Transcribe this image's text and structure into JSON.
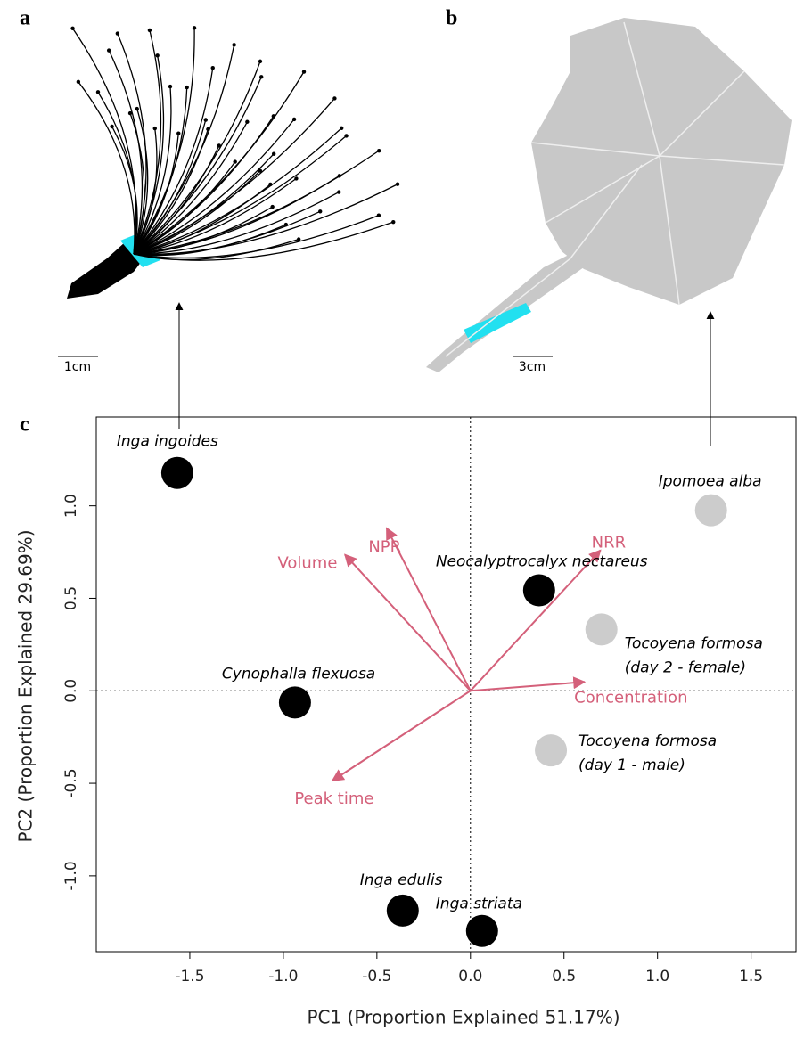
{
  "panel_labels": [
    "a",
    "b",
    "c"
  ],
  "scale_bars": [
    "1cm",
    "3cm"
  ],
  "chart_data": {
    "type": "scatter",
    "x_label": "PC1 (Proportion Explained 51.17%)",
    "y_label": "PC2 (Proportion Explained 29.69%)",
    "xlim": [
      -2.0,
      1.74
    ],
    "ylim": [
      -1.41,
      1.48
    ],
    "xticks": [
      -1.5,
      {
        "value": -1.0,
        "label": "-1.0"
      },
      -0.5,
      {
        "value": 0.0,
        "label": "0.0"
      },
      0.5,
      {
        "value": 1.0,
        "label": "1.0"
      },
      1.5
    ],
    "yticks": [
      {
        "value": -1.0,
        "label": "-1.0"
      },
      -0.5,
      {
        "value": 0.0,
        "label": "0.0"
      },
      0.5,
      {
        "value": 1.0,
        "label": "1.0"
      }
    ],
    "points": {
      "labels": [
        [
          "Inga ingoides"
        ],
        [
          "Ipomoea alba"
        ],
        [
          "Neocalyptrocalyx nectareus"
        ],
        [
          "Tocoyena formosa",
          "(day 2 - female)"
        ],
        [
          "Cynophalla flexuosa"
        ],
        [
          "Tocoyena formosa",
          "(day 1 - male)"
        ],
        [
          "Inga edulis"
        ],
        [
          "Inga striata"
        ]
      ],
      "x": [
        -1.567,
        1.286,
        0.367,
        0.7,
        -0.938,
        0.43,
        -0.362,
        0.062
      ],
      "y": [
        1.178,
        0.976,
        0.543,
        0.332,
        -0.063,
        -0.322,
        -1.188,
        -1.298
      ],
      "colors": [
        "#000000",
        "#cccccc",
        "#000000",
        "#cccccc",
        "#000000",
        "#cccccc",
        "#000000",
        "#000000"
      ]
    },
    "loadings": {
      "labels": [
        "Volume",
        "NPR",
        "NRR",
        "Concentration",
        "Peak time"
      ],
      "x": [
        -0.671,
        -0.448,
        0.695,
        0.61,
        -0.738
      ],
      "y": [
        0.736,
        0.88,
        0.76,
        0.048,
        -0.486
      ],
      "color": "#d4607a"
    }
  }
}
